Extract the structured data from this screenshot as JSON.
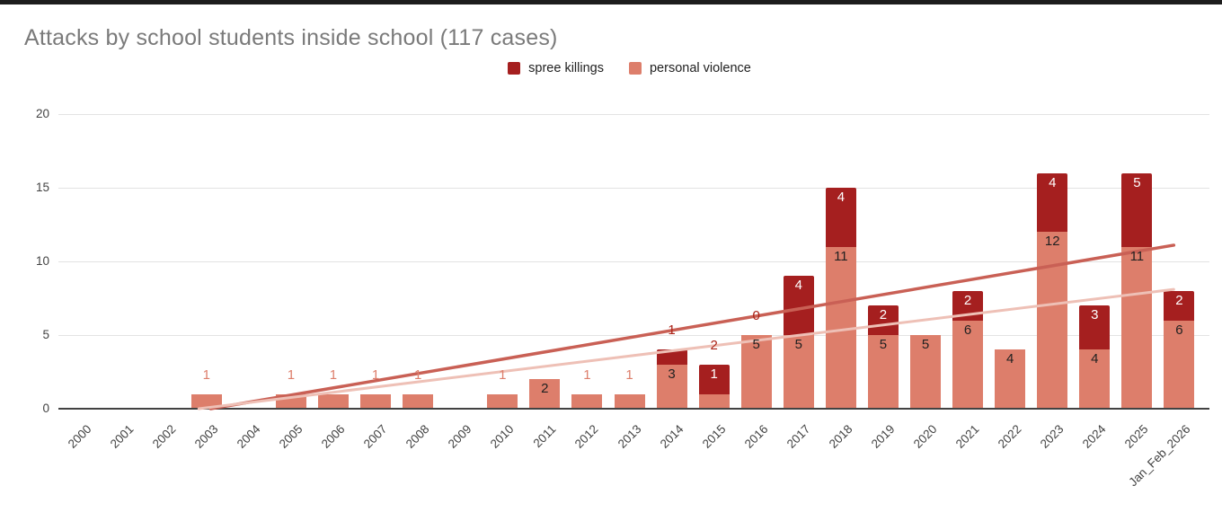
{
  "page": {
    "title": "Attacks by school students inside school (117 cases)"
  },
  "legend": [
    {
      "label": "spree killings",
      "color": "#a51f1f"
    },
    {
      "label": "personal violence",
      "color": "#dd7e6b"
    }
  ],
  "colors": {
    "spree": "#a51f1f",
    "personal": "#dd7e6b",
    "title_gray": "#7a7a7a",
    "axis_text": "#424242",
    "gridline": "#e3e3e3",
    "baseline": "#424242",
    "trend_dark": "#c96055",
    "trend_light": "#eec0b6"
  },
  "chart_data": {
    "type": "bar",
    "stacked": true,
    "title": "Attacks by school students inside school (117 cases)",
    "total_cases": 117,
    "xlabel": "",
    "ylabel": "",
    "ylim": [
      0,
      20
    ],
    "y_ticks": [
      0,
      5,
      10,
      15,
      20
    ],
    "grid": true,
    "legend_position": "top-center",
    "categories": [
      "2000",
      "2001",
      "2002",
      "2003",
      "2004",
      "2005",
      "2006",
      "2007",
      "2008",
      "2009",
      "2010",
      "2011",
      "2012",
      "2013",
      "2014",
      "2015",
      "2016",
      "2017",
      "2018",
      "2019",
      "2020",
      "2021",
      "2022",
      "2023",
      "2024",
      "2025",
      "Jan_Feb_2026"
    ],
    "series": [
      {
        "name": "spree killings",
        "color": "#a51f1f",
        "values": [
          0,
          0,
          0,
          0,
          0,
          0,
          0,
          0,
          0,
          0,
          0,
          0,
          0,
          0,
          1,
          2,
          0,
          4,
          4,
          2,
          0,
          2,
          0,
          4,
          3,
          5,
          2
        ]
      },
      {
        "name": "personal violence",
        "color": "#dd7e6b",
        "values": [
          0,
          0,
          0,
          1,
          0,
          1,
          1,
          1,
          1,
          0,
          1,
          2,
          1,
          1,
          3,
          1,
          5,
          5,
          11,
          5,
          5,
          6,
          4,
          12,
          4,
          11,
          6
        ]
      }
    ],
    "bar_labels": [
      null,
      null,
      null,
      {
        "personal": {
          "text": "1",
          "placement": "above",
          "color": "#dd7e6b"
        }
      },
      null,
      {
        "personal": {
          "text": "1",
          "placement": "above",
          "color": "#dd7e6b"
        }
      },
      {
        "personal": {
          "text": "1",
          "placement": "above",
          "color": "#dd7e6b"
        }
      },
      {
        "personal": {
          "text": "1",
          "placement": "above",
          "color": "#dd7e6b"
        }
      },
      {
        "personal": {
          "text": "1",
          "placement": "above",
          "color": "#dd7e6b"
        }
      },
      null,
      {
        "personal": {
          "text": "1",
          "placement": "above",
          "color": "#dd7e6b"
        }
      },
      {
        "personal": {
          "text": "2",
          "placement": "inside",
          "color": "#212121"
        }
      },
      {
        "personal": {
          "text": "1",
          "placement": "above",
          "color": "#dd7e6b"
        }
      },
      {
        "personal": {
          "text": "1",
          "placement": "above",
          "color": "#dd7e6b"
        }
      },
      {
        "spree": {
          "text": "1",
          "placement": "above",
          "color": "#ab2217"
        },
        "personal": {
          "text": "3",
          "placement": "inside",
          "color": "#212121"
        }
      },
      {
        "spree": {
          "text": "2",
          "placement": "above",
          "color": "#ab2217"
        },
        "personal": {
          "text": "1",
          "placement": "inside-spree",
          "color": "#ffffff"
        }
      },
      {
        "spree": {
          "text": "0",
          "placement": "above",
          "color": "#ab2217"
        },
        "personal": {
          "text": "5",
          "placement": "inside",
          "color": "#212121"
        }
      },
      {
        "spree": {
          "text": "4",
          "placement": "inside",
          "color": "#ffffff"
        },
        "personal": {
          "text": "5",
          "placement": "inside",
          "color": "#212121"
        }
      },
      {
        "spree": {
          "text": "4",
          "placement": "inside",
          "color": "#ffffff"
        },
        "personal": {
          "text": "11",
          "placement": "inside",
          "color": "#212121"
        }
      },
      {
        "spree": {
          "text": "2",
          "placement": "inside",
          "color": "#ffffff"
        },
        "personal": {
          "text": "5",
          "placement": "inside",
          "color": "#212121"
        }
      },
      {
        "personal": {
          "text": "5",
          "placement": "inside",
          "color": "#212121"
        }
      },
      {
        "spree": {
          "text": "2",
          "placement": "inside",
          "color": "#ffffff"
        },
        "personal": {
          "text": "6",
          "placement": "inside",
          "color": "#212121"
        }
      },
      {
        "personal": {
          "text": "4",
          "placement": "inside",
          "color": "#212121"
        }
      },
      {
        "spree": {
          "text": "4",
          "placement": "inside",
          "color": "#ffffff"
        },
        "personal": {
          "text": "12",
          "placement": "inside",
          "color": "#212121"
        }
      },
      {
        "spree": {
          "text": "3",
          "placement": "inside",
          "color": "#ffffff"
        },
        "personal": {
          "text": "4",
          "placement": "inside",
          "color": "#212121"
        }
      },
      {
        "spree": {
          "text": "5",
          "placement": "inside",
          "color": "#ffffff"
        },
        "personal": {
          "text": "11",
          "placement": "inside",
          "color": "#212121"
        }
      },
      {
        "spree": {
          "text": "2",
          "placement": "inside",
          "color": "#ffffff"
        },
        "personal": {
          "text": "6",
          "placement": "inside",
          "color": "#212121"
        }
      }
    ],
    "trendlines": [
      {
        "name": "trendline-dark",
        "color": "#c96055",
        "width": 3.5,
        "start": {
          "x_index": 3.6,
          "value": 0
        },
        "end": {
          "x_index": 26.37,
          "value": 11.1
        }
      },
      {
        "name": "trendline-light",
        "color": "#eec0b6",
        "width": 3,
        "start": {
          "x_index": 3.32,
          "value": 0
        },
        "end": {
          "x_index": 26.37,
          "value": 8.1
        }
      }
    ]
  }
}
